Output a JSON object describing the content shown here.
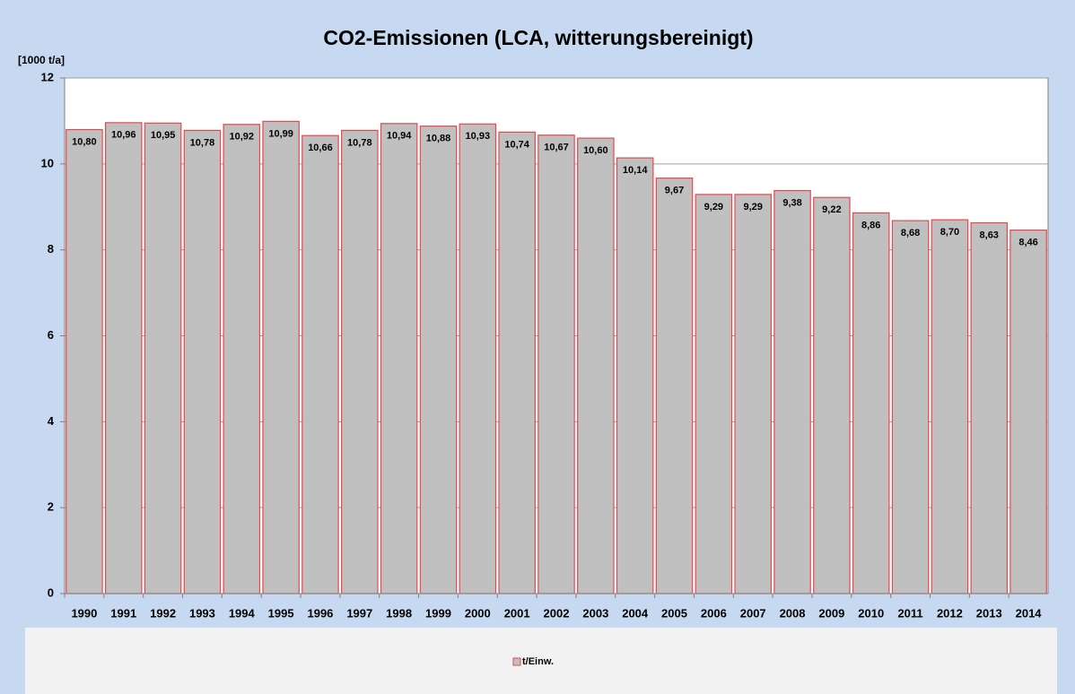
{
  "chart_data": {
    "type": "bar",
    "title": "CO2-Emissionen (LCA, witterungsbereinigt)",
    "y_label": "[1000 t/a]",
    "categories": [
      "1990",
      "1991",
      "1992",
      "1993",
      "1994",
      "1995",
      "1996",
      "1997",
      "1998",
      "1999",
      "2000",
      "2001",
      "2002",
      "2003",
      "2004",
      "2005",
      "2006",
      "2007",
      "2008",
      "2009",
      "2010",
      "2011",
      "2012",
      "2013",
      "2014"
    ],
    "series": [
      {
        "name": "t/Einw.",
        "color": "#c0c0c0",
        "edgecolor": "#e8474c",
        "values": [
          10.8,
          10.96,
          10.95,
          10.78,
          10.92,
          10.99,
          10.66,
          10.78,
          10.94,
          10.88,
          10.93,
          10.74,
          10.67,
          10.6,
          10.14,
          9.67,
          9.29,
          9.29,
          9.38,
          9.22,
          8.86,
          8.68,
          8.7,
          8.63,
          8.46
        ],
        "value_labels": [
          "10,80",
          "10,96",
          "10,95",
          "10,78",
          "10,92",
          "10,99",
          "10,66",
          "10,78",
          "10,94",
          "10,88",
          "10,93",
          "10,74",
          "10,67",
          "10,60",
          "10,14",
          "9,67",
          "9,29",
          "9,29",
          "9,38",
          "9,22",
          "8,86",
          "8,68",
          "8,70",
          "8,63",
          "8,46"
        ]
      }
    ],
    "ylim": [
      0,
      12
    ],
    "yticks": [
      0,
      2,
      4,
      6,
      8,
      10,
      12
    ],
    "grid": true,
    "legend": "bottom"
  }
}
